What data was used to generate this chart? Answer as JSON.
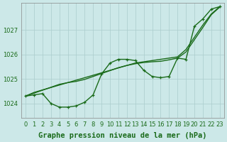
{
  "title": "Graphe pression niveau de la mer (hPa)",
  "bg_color": "#cce8e8",
  "grid_color": "#aacccc",
  "line_color": "#1a6b1a",
  "marker_color": "#1a6b1a",
  "x_labels": [
    "0",
    "1",
    "2",
    "3",
    "4",
    "5",
    "6",
    "7",
    "8",
    "9",
    "10",
    "11",
    "12",
    "13",
    "14",
    "15",
    "16",
    "17",
    "18",
    "19",
    "20",
    "21",
    "22",
    "23"
  ],
  "xlim": [
    -0.5,
    23.5
  ],
  "ylim": [
    1023.4,
    1028.1
  ],
  "yticks": [
    1024,
    1025,
    1026,
    1027
  ],
  "series": [
    {
      "y": [
        1024.3,
        1024.35,
        1024.4,
        1024.0,
        1023.85,
        1023.85,
        1023.9,
        1024.05,
        1024.35,
        1025.2,
        1025.65,
        1025.8,
        1025.8,
        1025.75,
        1025.35,
        1025.1,
        1025.05,
        1025.1,
        1025.85,
        1025.8,
        1027.15,
        1027.45,
        1027.85,
        1027.95
      ],
      "marker": true,
      "linewidth": 1.0
    },
    {
      "y": [
        1024.3,
        1024.45,
        1024.55,
        1024.65,
        1024.75,
        1024.85,
        1024.95,
        1025.05,
        1025.15,
        1025.25,
        1025.35,
        1025.45,
        1025.55,
        1025.65,
        1025.7,
        1025.75,
        1025.8,
        1025.85,
        1025.9,
        1026.2,
        1026.7,
        1027.2,
        1027.65,
        1027.95
      ],
      "marker": false,
      "linewidth": 1.0
    },
    {
      "y": [
        1024.3,
        1024.42,
        1024.54,
        1024.66,
        1024.78,
        1024.85,
        1024.9,
        1024.98,
        1025.1,
        1025.22,
        1025.34,
        1025.46,
        1025.55,
        1025.62,
        1025.67,
        1025.7,
        1025.72,
        1025.78,
        1025.85,
        1026.1,
        1026.6,
        1027.1,
        1027.62,
        1027.93
      ],
      "marker": false,
      "linewidth": 1.0
    }
  ],
  "marker_size": 3.5,
  "tick_fontsize": 6,
  "title_fontsize": 7.5
}
